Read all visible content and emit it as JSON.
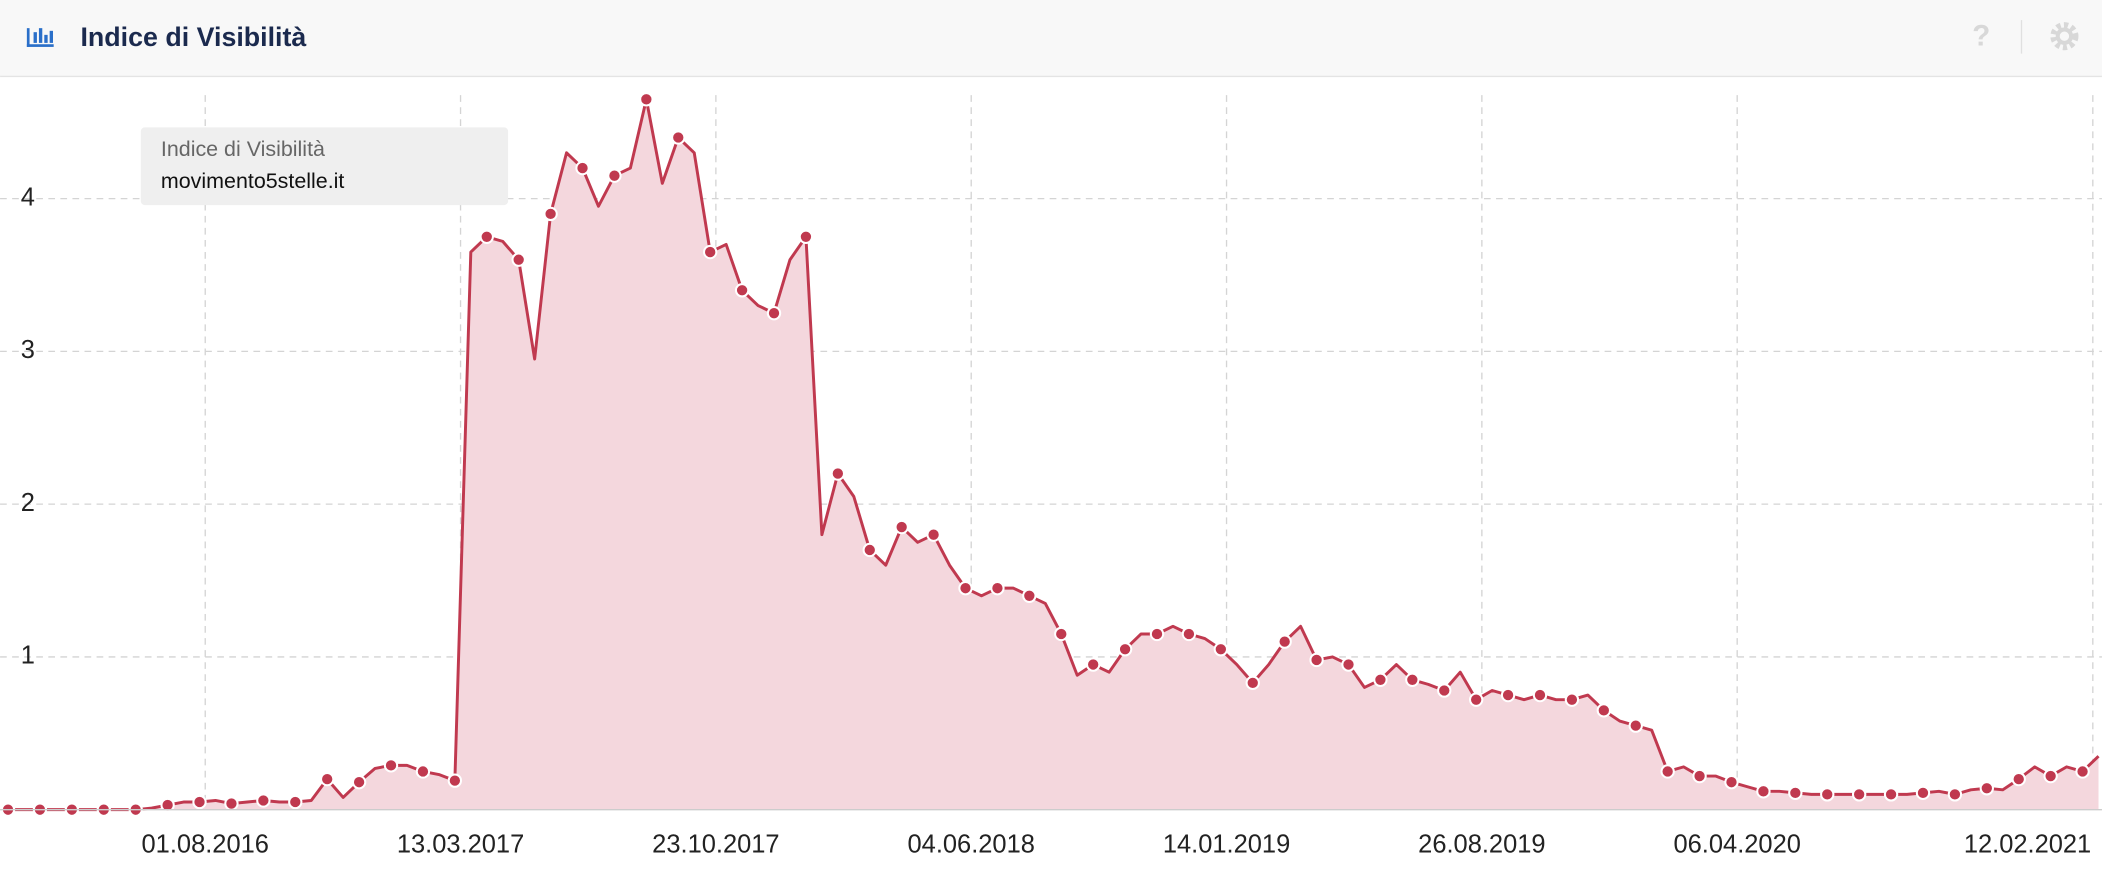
{
  "header_help": "?",
  "chart_data": {
    "type": "area",
    "title": "Indice di Visibilità",
    "legend_title": "Indice di Visibilità",
    "x": [
      "2016-02-10",
      "2016-02-24",
      "2016-03-09",
      "2016-03-23",
      "2016-04-06",
      "2016-04-20",
      "2016-05-04",
      "2016-05-18",
      "2016-06-01",
      "2016-06-15",
      "2016-06-29",
      "2016-07-13",
      "2016-07-27",
      "2016-08-10",
      "2016-08-24",
      "2016-09-07",
      "2016-09-21",
      "2016-10-05",
      "2016-10-19",
      "2016-11-02",
      "2016-11-16",
      "2016-11-30",
      "2016-12-14",
      "2016-12-28",
      "2017-01-11",
      "2017-01-25",
      "2017-02-08",
      "2017-02-22",
      "2017-03-08",
      "2017-03-22",
      "2017-04-05",
      "2017-04-19",
      "2017-05-03",
      "2017-05-17",
      "2017-05-31",
      "2017-06-14",
      "2017-06-28",
      "2017-07-12",
      "2017-07-26",
      "2017-08-09",
      "2017-08-23",
      "2017-09-06",
      "2017-09-20",
      "2017-10-04",
      "2017-10-18",
      "2017-11-01",
      "2017-11-15",
      "2017-11-29",
      "2017-12-13",
      "2017-12-27",
      "2018-01-10",
      "2018-01-24",
      "2018-02-07",
      "2018-02-21",
      "2018-03-07",
      "2018-03-21",
      "2018-04-04",
      "2018-04-18",
      "2018-05-02",
      "2018-05-16",
      "2018-05-30",
      "2018-06-13",
      "2018-06-27",
      "2018-07-11",
      "2018-07-25",
      "2018-08-08",
      "2018-08-22",
      "2018-09-05",
      "2018-09-19",
      "2018-10-03",
      "2018-10-17",
      "2018-10-31",
      "2018-11-14",
      "2018-11-28",
      "2018-12-12",
      "2018-12-26",
      "2019-01-09",
      "2019-01-23",
      "2019-02-06",
      "2019-02-20",
      "2019-03-06",
      "2019-03-20",
      "2019-04-03",
      "2019-04-17",
      "2019-05-01",
      "2019-05-15",
      "2019-05-29",
      "2019-06-12",
      "2019-06-26",
      "2019-07-10",
      "2019-07-24",
      "2019-08-07",
      "2019-08-21",
      "2019-09-04",
      "2019-09-18",
      "2019-10-02",
      "2019-10-16",
      "2019-10-30",
      "2019-11-13",
      "2019-11-27",
      "2019-12-11",
      "2019-12-25",
      "2020-01-08",
      "2020-01-22",
      "2020-02-05",
      "2020-02-19",
      "2020-03-04",
      "2020-03-18",
      "2020-04-01",
      "2020-04-15",
      "2020-04-29",
      "2020-05-13",
      "2020-05-27",
      "2020-06-10",
      "2020-06-24",
      "2020-07-08",
      "2020-07-22",
      "2020-08-05",
      "2020-08-19",
      "2020-09-02",
      "2020-09-16",
      "2020-09-30",
      "2020-10-14",
      "2020-10-28",
      "2020-11-11",
      "2020-11-25",
      "2020-12-09",
      "2020-12-23",
      "2021-01-06",
      "2021-01-20",
      "2021-02-03",
      "2021-02-17"
    ],
    "series": [
      {
        "name": "movimento5stelle.it",
        "color": "#c0394f",
        "fill": "#f4d7dd",
        "values": [
          0,
          0,
          0,
          0,
          0,
          0,
          0,
          0,
          0,
          0.01,
          0.03,
          0.05,
          0.05,
          0.06,
          0.04,
          0.05,
          0.06,
          0.05,
          0.05,
          0.06,
          0.2,
          0.08,
          0.18,
          0.27,
          0.29,
          0.29,
          0.25,
          0.23,
          0.19,
          3.65,
          3.75,
          3.72,
          3.6,
          2.95,
          3.9,
          4.3,
          4.2,
          3.95,
          4.15,
          4.2,
          4.65,
          4.1,
          4.4,
          4.3,
          3.65,
          3.7,
          3.4,
          3.3,
          3.25,
          3.6,
          3.75,
          1.8,
          2.2,
          2.05,
          1.7,
          1.6,
          1.85,
          1.75,
          1.8,
          1.6,
          1.45,
          1.4,
          1.45,
          1.45,
          1.4,
          1.35,
          1.15,
          0.88,
          0.95,
          0.9,
          1.05,
          1.15,
          1.15,
          1.2,
          1.15,
          1.12,
          1.05,
          0.95,
          0.83,
          0.95,
          1.1,
          1.2,
          0.98,
          1.0,
          0.95,
          0.8,
          0.85,
          0.95,
          0.85,
          0.82,
          0.78,
          0.9,
          0.72,
          0.78,
          0.75,
          0.72,
          0.75,
          0.72,
          0.72,
          0.75,
          0.65,
          0.58,
          0.55,
          0.52,
          0.25,
          0.28,
          0.22,
          0.22,
          0.18,
          0.15,
          0.12,
          0.12,
          0.11,
          0.1,
          0.1,
          0.1,
          0.1,
          0.1,
          0.1,
          0.1,
          0.11,
          0.12,
          0.1,
          0.13,
          0.14,
          0.13,
          0.2,
          0.28,
          0.22,
          0.28,
          0.25,
          0.35
        ]
      }
    ],
    "xlim": [
      "2016-02-03",
      "2021-02-20"
    ],
    "xticks": [
      {
        "value": "2016-08-01",
        "label": "01.08.2016"
      },
      {
        "value": "2017-03-13",
        "label": "13.03.2017"
      },
      {
        "value": "2017-10-23",
        "label": "23.10.2017"
      },
      {
        "value": "2018-06-04",
        "label": "04.06.2018"
      },
      {
        "value": "2019-01-14",
        "label": "14.01.2019"
      },
      {
        "value": "2019-08-26",
        "label": "26.08.2019"
      },
      {
        "value": "2020-04-06",
        "label": "06.04.2020"
      },
      {
        "value": "2021-02-12",
        "label": "12.02.2021"
      }
    ],
    "ylim": [
      0,
      4.8
    ],
    "yticks": [
      1,
      2,
      3,
      4
    ],
    "grid": true
  }
}
